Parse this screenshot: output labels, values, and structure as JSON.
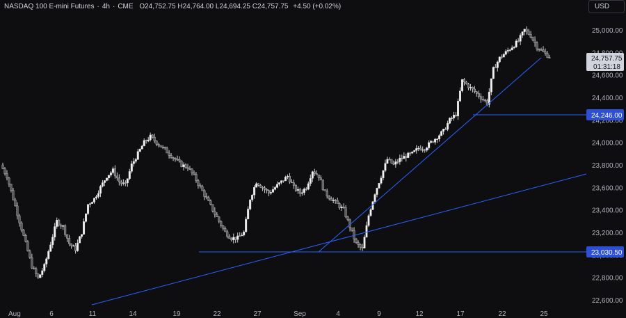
{
  "header": {
    "symbol": "NASDAQ 100 E-mini Futures",
    "interval": "4h",
    "exchange": "CME",
    "open_key": "O",
    "open": "24,752.75",
    "high_key": "H",
    "high": "24,764.00",
    "low_key": "L",
    "low": "24,694.25",
    "close_key": "C",
    "close": "24,757.75",
    "change": "+4.50 (+0.02%)"
  },
  "currency": "USD",
  "colors": {
    "background": "#0e0e10",
    "candle": "#e6e6e6",
    "line": "#2962ff",
    "grid": "#1a1a1d",
    "label_bg": "#2d4fd6",
    "price_bg": "#d1d4dc"
  },
  "price_labels": {
    "current": "24,757.75",
    "countdown": "01:31:18",
    "level_high": "24,246.00",
    "level_low": "23,030.50"
  },
  "chart_data": {
    "type": "candlestick",
    "y_ticks": [
      "22,600.00",
      "22,800.00",
      "23,000.00",
      "23,200.00",
      "23,400.00",
      "23,600.00",
      "23,800.00",
      "24,000.00",
      "24,200.00",
      "24,400.00",
      "24,600.00",
      "24,800.00",
      "25,000.00"
    ],
    "y_tick_values": [
      22600,
      22800,
      23000,
      23200,
      23400,
      23600,
      23800,
      24000,
      24200,
      24400,
      24600,
      24800,
      25000
    ],
    "ylim": [
      22550,
      25120
    ],
    "x_labels": [
      "Aug",
      "6",
      "11",
      "14",
      "19",
      "22",
      "27",
      "Sep",
      "4",
      "9",
      "12",
      "17",
      "22",
      "25"
    ],
    "price_path": [
      23800,
      23700,
      23500,
      23300,
      23100,
      22900,
      22790,
      22900,
      23100,
      23300,
      23250,
      23100,
      23050,
      23200,
      23450,
      23500,
      23600,
      23700,
      23750,
      23650,
      23620,
      23800,
      23900,
      24000,
      24050,
      24000,
      23950,
      23900,
      23850,
      23800,
      23780,
      23700,
      23600,
      23500,
      23400,
      23300,
      23200,
      23150,
      23150,
      23200,
      23500,
      23650,
      23600,
      23550,
      23600,
      23650,
      23700,
      23600,
      23550,
      23600,
      23750,
      23700,
      23550,
      23500,
      23450,
      23400,
      23250,
      23100,
      23050,
      23350,
      23550,
      23700,
      23850,
      23800,
      23850,
      23880,
      23900,
      23950,
      23950,
      24000,
      24050,
      24100,
      24200,
      24250,
      24550,
      24500,
      24450,
      24400,
      24350,
      24650,
      24750,
      24800,
      24850,
      24900,
      25000,
      24950,
      24850,
      24800,
      24760
    ],
    "levels": [
      {
        "value": 24246.0,
        "label": "24,246.00"
      },
      {
        "value": 23030.5,
        "label": "23,030.50"
      }
    ],
    "current_price": 24757.75
  }
}
